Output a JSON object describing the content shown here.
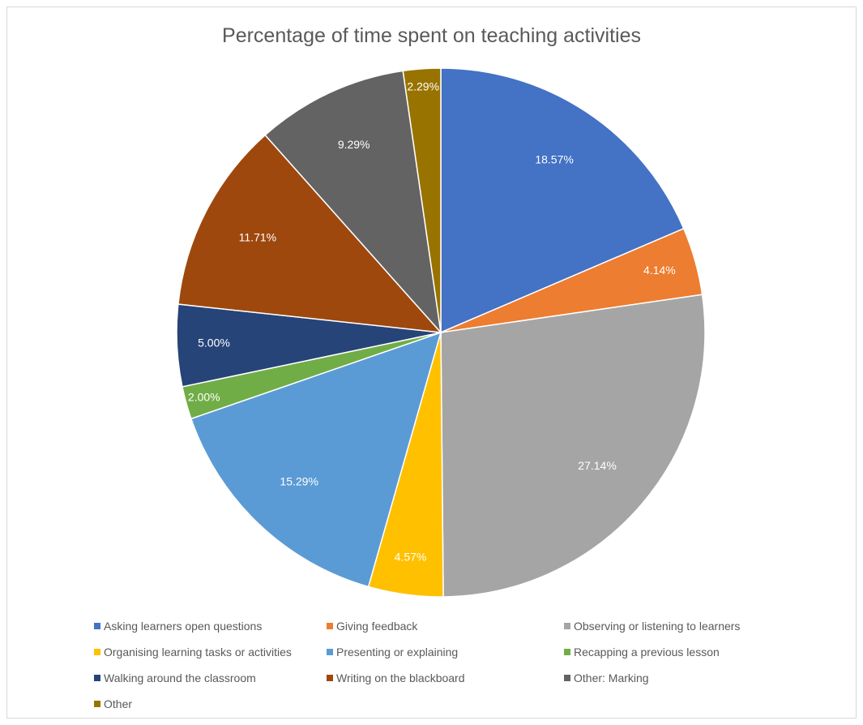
{
  "chart_data": {
    "type": "pie",
    "title": "Percentage of time spent on teaching activities",
    "legend_position": "bottom",
    "slices": [
      {
        "name": "Asking learners open questions",
        "value": 18.57,
        "label": "18.57%",
        "color": "#4472C4"
      },
      {
        "name": "Giving feedback",
        "value": 4.14,
        "label": "4.14%",
        "color": "#ED7D31"
      },
      {
        "name": "Observing or listening to learners",
        "value": 27.14,
        "label": "27.14%",
        "color": "#A5A5A5"
      },
      {
        "name": "Organising learning tasks or activities",
        "value": 4.57,
        "label": "4.57%",
        "color": "#FFC000"
      },
      {
        "name": "Presenting or explaining",
        "value": 15.29,
        "label": "15.29%",
        "color": "#5B9BD5"
      },
      {
        "name": "Recapping a previous lesson",
        "value": 2.0,
        "label": "2.00%",
        "color": "#70AD47"
      },
      {
        "name": "Walking around the classroom",
        "value": 5.0,
        "label": "5.00%",
        "color": "#264478"
      },
      {
        "name": "Writing on the blackboard",
        "value": 11.71,
        "label": "11.71%",
        "color": "#9E480E"
      },
      {
        "name": "Other: Marking",
        "value": 9.29,
        "label": "9.29%",
        "color": "#636363"
      },
      {
        "name": "Other",
        "value": 2.29,
        "label": "2.29%",
        "color": "#997300"
      }
    ]
  }
}
